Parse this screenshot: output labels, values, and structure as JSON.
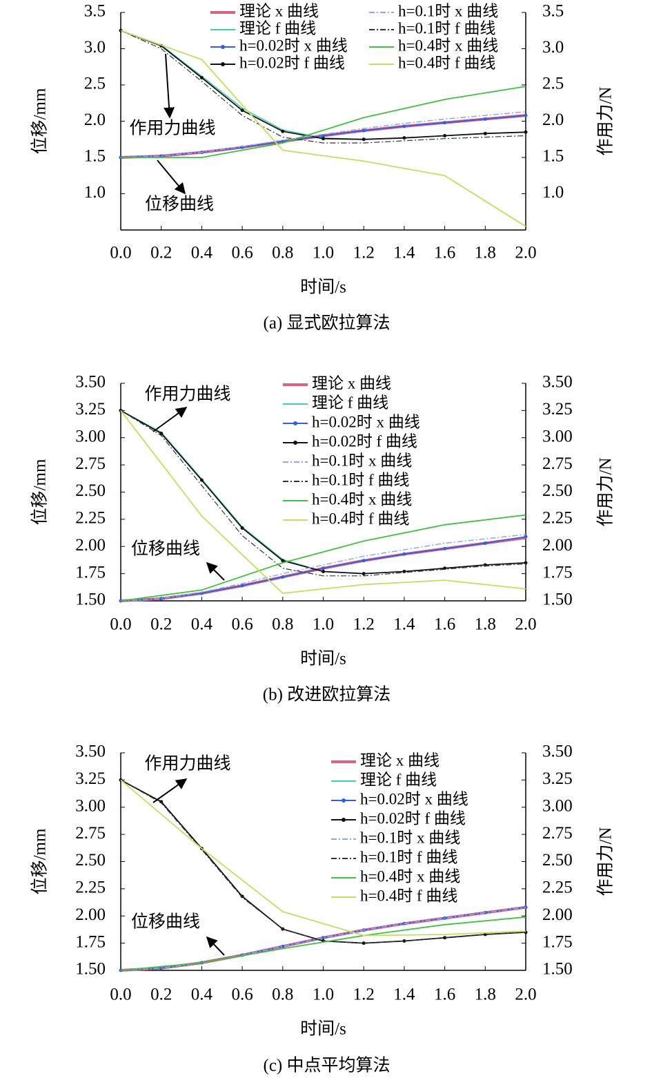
{
  "chart_data": [
    {
      "type": "line",
      "caption": "(a) 显式欧拉算法",
      "x_label": "时间/s",
      "y_label": "位移/mm",
      "y2_label": "作用力/N",
      "annotations": [
        "作用力曲线",
        "位移曲线"
      ],
      "grid": false,
      "xlim": [
        0,
        2
      ],
      "xticks": [
        {
          "value": 0,
          "label": "0.0"
        },
        0.2,
        0.4,
        0.6,
        0.8,
        {
          "value": 1,
          "label": "1.0"
        },
        1.2,
        1.4,
        1.6,
        1.8,
        {
          "value": 2,
          "label": "2.0"
        }
      ],
      "ylim": [
        0.5,
        3.5
      ],
      "yticks": [
        {
          "value": 1,
          "label": "1.0"
        },
        1.5,
        {
          "value": 2,
          "label": "2.0"
        },
        2.5,
        {
          "value": 3,
          "label": "3.0"
        },
        3.5
      ],
      "y2lim": [
        0.5,
        3.5
      ],
      "y2ticks": [
        {
          "value": 1,
          "label": "1.0"
        },
        1.5,
        {
          "value": 2,
          "label": "2.0"
        },
        2.5,
        {
          "value": 3,
          "label": "3.0"
        },
        3.5
      ],
      "series": [
        {
          "name": "理论 x 曲线",
          "color": "#e06080",
          "x": [
            0,
            0.2,
            0.4,
            0.6,
            0.8,
            1,
            1.2,
            1.4,
            1.6,
            1.8,
            2
          ],
          "values": [
            1.5,
            1.52,
            1.57,
            1.64,
            1.72,
            1.8,
            1.87,
            1.93,
            1.98,
            2.03,
            2.08
          ]
        },
        {
          "name": "理论 f 曲线",
          "color": "#40d0b0",
          "axis": "y2",
          "x": [
            0,
            0.2,
            0.4,
            0.6,
            0.8,
            1,
            1.2,
            1.4,
            1.6,
            1.8,
            2
          ],
          "values": [
            3.25,
            3.05,
            2.62,
            2.18,
            1.88,
            1.77,
            1.75,
            1.77,
            1.8,
            1.83,
            1.85
          ]
        },
        {
          "name": "h=0.02时 x 曲线",
          "color": "#3060e0",
          "marker": "dot",
          "x": [
            0,
            0.2,
            0.4,
            0.6,
            0.8,
            1,
            1.2,
            1.4,
            1.6,
            1.8,
            2
          ],
          "values": [
            1.5,
            1.52,
            1.57,
            1.64,
            1.72,
            1.8,
            1.87,
            1.93,
            1.98,
            2.03,
            2.08
          ]
        },
        {
          "name": "h=0.02时 f 曲线",
          "color": "#111111",
          "marker": "dot",
          "axis": "y2",
          "x": [
            0,
            0.2,
            0.4,
            0.6,
            0.8,
            1,
            1.2,
            1.4,
            1.6,
            1.8,
            2
          ],
          "values": [
            3.25,
            3.04,
            2.6,
            2.15,
            1.86,
            1.76,
            1.75,
            1.77,
            1.8,
            1.83,
            1.85
          ]
        },
        {
          "name": "h=0.1时 x 曲线",
          "color": "#90a8e8",
          "dash": "dashdot",
          "x": [
            0,
            0.2,
            0.4,
            0.6,
            0.8,
            1,
            1.2,
            1.4,
            1.6,
            1.8,
            2
          ],
          "values": [
            1.5,
            1.52,
            1.57,
            1.65,
            1.74,
            1.82,
            1.9,
            1.97,
            2.03,
            2.08,
            2.13
          ]
        },
        {
          "name": "h=0.1时 f 曲线",
          "color": "#333333",
          "dash": "dashdot",
          "axis": "y2",
          "x": [
            0,
            0.2,
            0.4,
            0.6,
            0.8,
            1,
            1.2,
            1.4,
            1.6,
            1.8,
            2
          ],
          "values": [
            3.25,
            3,
            2.55,
            2.08,
            1.78,
            1.7,
            1.7,
            1.73,
            1.76,
            1.78,
            1.8
          ]
        },
        {
          "name": "h=0.4时 x 曲线",
          "color": "#40c040",
          "x": [
            0,
            0.4,
            0.8,
            1.2,
            1.6,
            2
          ],
          "values": [
            1.5,
            1.5,
            1.7,
            2.05,
            2.3,
            2.48
          ]
        },
        {
          "name": "h=0.4时 f 曲线",
          "color": "#c0e060",
          "axis": "y2",
          "x": [
            0,
            0.4,
            0.8,
            1.2,
            1.6,
            2
          ],
          "values": [
            3.25,
            2.85,
            1.6,
            1.45,
            1.25,
            0.55
          ]
        }
      ]
    },
    {
      "type": "line",
      "caption": "(b) 改进欧拉算法",
      "x_label": "时间/s",
      "y_label": "位移/mm",
      "y2_label": "作用力/N",
      "annotations": [
        "作用力曲线",
        "位移曲线"
      ],
      "grid": false,
      "xlim": [
        0,
        2
      ],
      "xticks": [
        {
          "value": 0,
          "label": "0.0"
        },
        0.2,
        0.4,
        0.6,
        0.8,
        {
          "value": 1,
          "label": "1.0"
        },
        1.2,
        1.4,
        1.6,
        1.8,
        {
          "value": 2,
          "label": "2.0"
        }
      ],
      "ylim": [
        1.5,
        3.5
      ],
      "yticks": [
        {
          "value": 1.5,
          "label": "1.50"
        },
        1.75,
        {
          "value": 2,
          "label": "2.00"
        },
        2.25,
        {
          "value": 2.5,
          "label": "2.50"
        },
        2.75,
        {
          "value": 3,
          "label": "3.00"
        },
        3.25,
        {
          "value": 3.5,
          "label": "3.50"
        }
      ],
      "y2lim": [
        1.5,
        3.5
      ],
      "y2ticks": [
        {
          "value": 1.5,
          "label": "1.50"
        },
        1.75,
        {
          "value": 2,
          "label": "2.00"
        },
        2.25,
        {
          "value": 2.5,
          "label": "2.50"
        },
        2.75,
        {
          "value": 3,
          "label": "3.00"
        },
        3.25,
        {
          "value": 3.5,
          "label": "3.50"
        }
      ],
      "series": [
        {
          "name": "理论 x 曲线",
          "color": "#e06080",
          "x": [
            0,
            0.2,
            0.4,
            0.6,
            0.8,
            1,
            1.2,
            1.4,
            1.6,
            1.8,
            2
          ],
          "values": [
            1.5,
            1.52,
            1.57,
            1.64,
            1.72,
            1.8,
            1.87,
            1.93,
            1.98,
            2.03,
            2.08
          ]
        },
        {
          "name": "理论 f 曲线",
          "color": "#40d0b0",
          "axis": "y2",
          "x": [
            0,
            0.2,
            0.4,
            0.6,
            0.8,
            1,
            1.2,
            1.4,
            1.6,
            1.8,
            2
          ],
          "values": [
            3.25,
            3.05,
            2.62,
            2.18,
            1.88,
            1.77,
            1.75,
            1.77,
            1.8,
            1.83,
            1.85
          ]
        },
        {
          "name": "h=0.02时 x 曲线",
          "color": "#3060e0",
          "marker": "dot",
          "x": [
            0,
            0.2,
            0.4,
            0.6,
            0.8,
            1,
            1.2,
            1.4,
            1.6,
            1.8,
            2
          ],
          "values": [
            1.5,
            1.52,
            1.57,
            1.64,
            1.72,
            1.8,
            1.87,
            1.93,
            1.98,
            2.03,
            2.09
          ]
        },
        {
          "name": "h=0.02时 f 曲线",
          "color": "#111111",
          "marker": "dot",
          "axis": "y2",
          "x": [
            0,
            0.2,
            0.4,
            0.6,
            0.8,
            1,
            1.2,
            1.4,
            1.6,
            1.8,
            2
          ],
          "values": [
            3.25,
            3.04,
            2.61,
            2.17,
            1.87,
            1.77,
            1.75,
            1.77,
            1.8,
            1.83,
            1.85
          ]
        },
        {
          "name": "h=0.1时 x 曲线",
          "color": "#90a8e8",
          "dash": "dashdot",
          "x": [
            0,
            0.2,
            0.4,
            0.6,
            0.8,
            1,
            1.2,
            1.4,
            1.6,
            1.8,
            2
          ],
          "values": [
            1.5,
            1.52,
            1.58,
            1.66,
            1.75,
            1.83,
            1.91,
            1.97,
            2.03,
            2.07,
            2.11
          ]
        },
        {
          "name": "h=0.1时 f 曲线",
          "color": "#333333",
          "dash": "dashdot",
          "axis": "y2",
          "x": [
            0,
            0.2,
            0.4,
            0.6,
            0.8,
            1,
            1.2,
            1.4,
            1.6,
            1.8,
            2
          ],
          "values": [
            3.25,
            3.02,
            2.56,
            2.1,
            1.8,
            1.73,
            1.73,
            1.76,
            1.79,
            1.82,
            1.84
          ]
        },
        {
          "name": "h=0.4时 x 曲线",
          "color": "#40c040",
          "x": [
            0,
            0.4,
            0.8,
            1.2,
            1.6,
            2
          ],
          "values": [
            1.5,
            1.6,
            1.85,
            2.05,
            2.2,
            2.29
          ]
        },
        {
          "name": "h=0.4时 f 曲线",
          "color": "#c0e060",
          "axis": "y2",
          "x": [
            0,
            0.4,
            0.8,
            1.2,
            1.6,
            2
          ],
          "values": [
            3.25,
            2.28,
            1.57,
            1.65,
            1.69,
            1.61
          ]
        }
      ]
    },
    {
      "type": "line",
      "caption": "(c) 中点平均算法",
      "x_label": "时间/s",
      "y_label": "位移/mm",
      "y2_label": "作用力/N",
      "annotations": [
        "作用力曲线",
        "位移曲线"
      ],
      "grid": false,
      "xlim": [
        0,
        2
      ],
      "xticks": [
        {
          "value": 0,
          "label": "0.0"
        },
        0.2,
        0.4,
        0.6,
        0.8,
        {
          "value": 1,
          "label": "1.0"
        },
        1.2,
        1.4,
        1.6,
        1.8,
        {
          "value": 2,
          "label": "2.0"
        }
      ],
      "ylim": [
        1.5,
        3.5
      ],
      "yticks": [
        {
          "value": 1.5,
          "label": "1.50"
        },
        1.75,
        {
          "value": 2,
          "label": "2.00"
        },
        2.25,
        {
          "value": 2.5,
          "label": "2.50"
        },
        2.75,
        {
          "value": 3,
          "label": "3.00"
        },
        3.25,
        {
          "value": 3.5,
          "label": "3.50"
        }
      ],
      "y2lim": [
        1.5,
        3.5
      ],
      "y2ticks": [
        {
          "value": 1.5,
          "label": "1.50"
        },
        1.75,
        {
          "value": 2,
          "label": "2.00"
        },
        2.25,
        {
          "value": 2.5,
          "label": "2.50"
        },
        2.75,
        {
          "value": 3,
          "label": "3.00"
        },
        3.25,
        {
          "value": 3.5,
          "label": "3.50"
        }
      ],
      "series": [
        {
          "name": "理论 x 曲线",
          "color": "#e06080",
          "x": [
            0,
            0.2,
            0.4,
            0.6,
            0.8,
            1,
            1.2,
            1.4,
            1.6,
            1.8,
            2
          ],
          "values": [
            1.5,
            1.52,
            1.57,
            1.64,
            1.72,
            1.8,
            1.87,
            1.93,
            1.98,
            2.03,
            2.08
          ]
        },
        {
          "name": "理论 f 曲线",
          "color": "#40d0b0",
          "axis": "y2",
          "x": [
            0,
            0.2,
            0.4,
            0.6,
            0.8,
            1,
            1.2,
            1.4,
            1.6,
            1.8,
            2
          ],
          "values": [
            3.25,
            3.05,
            2.62,
            2.18,
            1.88,
            1.77,
            1.75,
            1.77,
            1.8,
            1.83,
            1.85
          ]
        },
        {
          "name": "h=0.02时 x 曲线",
          "color": "#3060e0",
          "marker": "dot",
          "x": [
            0,
            0.2,
            0.4,
            0.6,
            0.8,
            1,
            1.2,
            1.4,
            1.6,
            1.8,
            2
          ],
          "values": [
            1.5,
            1.52,
            1.57,
            1.64,
            1.72,
            1.8,
            1.87,
            1.93,
            1.98,
            2.03,
            2.08
          ]
        },
        {
          "name": "h=0.02时 f 曲线",
          "color": "#111111",
          "marker": "dot",
          "axis": "y2",
          "x": [
            0,
            0.2,
            0.4,
            0.6,
            0.8,
            1,
            1.2,
            1.4,
            1.6,
            1.8,
            2
          ],
          "values": [
            3.25,
            3.05,
            2.62,
            2.18,
            1.88,
            1.77,
            1.75,
            1.77,
            1.8,
            1.83,
            1.85
          ]
        },
        {
          "name": "h=0.1时 x 曲线",
          "color": "#90a8e8",
          "dash": "dashdot",
          "x": [
            0,
            0.2,
            0.4,
            0.6,
            0.8,
            1,
            1.2,
            1.4,
            1.6,
            1.8,
            2
          ],
          "values": [
            1.5,
            1.52,
            1.57,
            1.64,
            1.72,
            1.8,
            1.87,
            1.93,
            1.98,
            2.03,
            2.08
          ]
        },
        {
          "name": "h=0.1时 f 曲线",
          "color": "#333333",
          "dash": "dashdot",
          "axis": "y2",
          "x": [
            0,
            0.2,
            0.4,
            0.6,
            0.8,
            1,
            1.2,
            1.4,
            1.6,
            1.8,
            2
          ],
          "values": [
            3.25,
            3.04,
            2.61,
            2.17,
            1.88,
            1.77,
            1.75,
            1.77,
            1.8,
            1.83,
            1.85
          ]
        },
        {
          "name": "h=0.4时 x 曲线",
          "color": "#40c040",
          "x": [
            0,
            0.4,
            0.8,
            1.2,
            1.6,
            2
          ],
          "values": [
            1.5,
            1.57,
            1.7,
            1.82,
            1.92,
            1.99
          ]
        },
        {
          "name": "h=0.4时 f 曲线",
          "color": "#c0e060",
          "axis": "y2",
          "x": [
            0,
            0.4,
            0.8,
            1.2,
            1.6,
            2
          ],
          "values": [
            3.25,
            2.62,
            2.04,
            1.82,
            1.83,
            1.86
          ]
        }
      ]
    }
  ]
}
